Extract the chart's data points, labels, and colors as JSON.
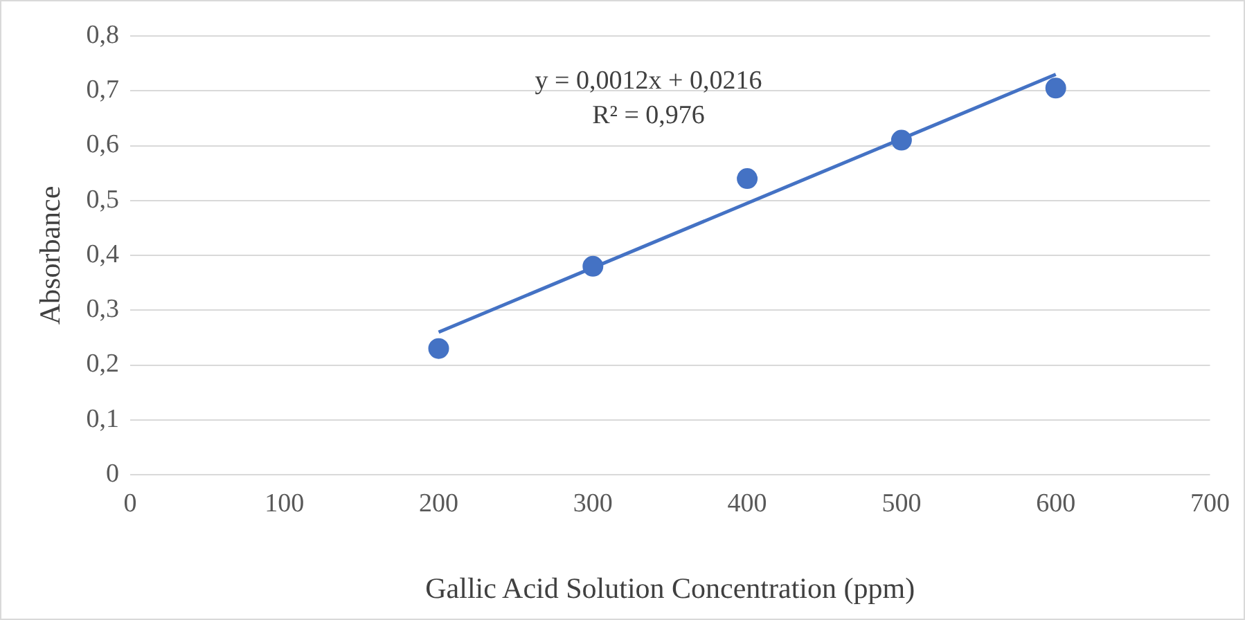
{
  "chart_data": {
    "type": "scatter",
    "xlabel": "Gallic Acid Solution Concentration (ppm)",
    "ylabel": "Absorbance",
    "x": [
      200,
      300,
      400,
      500,
      600
    ],
    "series": [
      {
        "type": "scatter",
        "color": "#4472c4",
        "values": [
          0.23,
          0.38,
          0.54,
          0.61,
          0.705
        ],
        "marker": "circle"
      },
      {
        "type": "line",
        "color": "#4472c4",
        "x": [
          200,
          600
        ],
        "values": [
          0.26,
          0.73
        ],
        "marker": "none"
      }
    ],
    "xlim": [
      0,
      700
    ],
    "xticks": [
      0,
      100,
      200,
      300,
      400,
      500,
      600,
      700
    ],
    "ylim": [
      0,
      0.8
    ],
    "yticks": [
      0,
      {
        "value": 0.1,
        "label": "0,1"
      },
      {
        "value": 0.2,
        "label": "0,2"
      },
      {
        "value": 0.3,
        "label": "0,3"
      },
      {
        "value": 0.4,
        "label": "0,4"
      },
      {
        "value": 0.5,
        "label": "0,5"
      },
      {
        "value": 0.6,
        "label": "0,6"
      },
      {
        "value": 0.7,
        "label": "0,7"
      },
      {
        "value": 0.8,
        "label": "0,8"
      }
    ],
    "grid": "y",
    "legend": false,
    "annotations": [
      "y = 0,0012x + 0,0216",
      "R² = 0,976"
    ]
  }
}
